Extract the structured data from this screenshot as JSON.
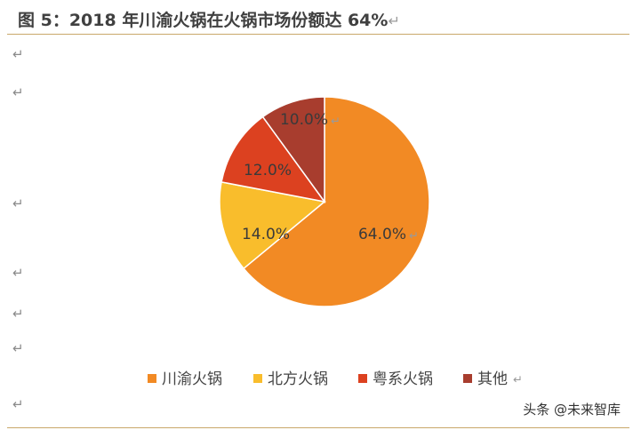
{
  "title": "图 5：2018 年川渝火锅在火锅市场份额达 64%",
  "watermark": "头条 @未来智库",
  "colors": {
    "川渝火锅": "#f28a24",
    "北方火锅": "#f9bd2c",
    "粤系火锅": "#dc4120",
    "其他": "#a83d2e"
  },
  "chart_data": {
    "type": "pie",
    "title": "",
    "categories": [
      "川渝火锅",
      "北方火锅",
      "粤系火锅",
      "其他"
    ],
    "values": [
      64.0,
      14.0,
      12.0,
      10.0
    ],
    "labels": [
      "64.0%",
      "14.0%",
      "12.0%",
      "10.0%"
    ],
    "legend": "bottom"
  }
}
